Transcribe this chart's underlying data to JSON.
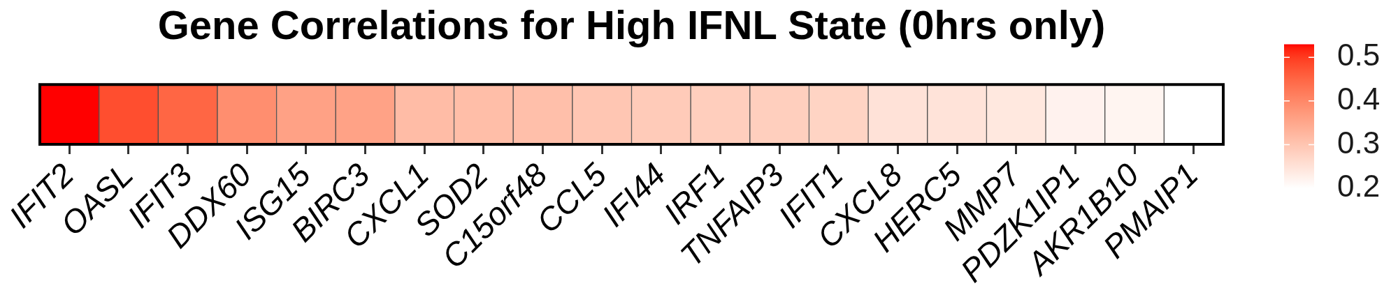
{
  "chart_data": {
    "type": "heatmap",
    "title": "Gene Correlations for High IFNL State (0hrs only)",
    "categories": [
      "IFIT2",
      "OASL",
      "IFIT3",
      "DDX60",
      "ISG15",
      "BIRC3",
      "CXCL1",
      "SOD2",
      "C15orf48",
      "CCL5",
      "IFI44",
      "IRF1",
      "TNFAIP3",
      "IFIT1",
      "CXCL8",
      "HERC5",
      "MMP7",
      "PDZK1IP1",
      "AKR1B10",
      "PMAIP1"
    ],
    "y_categories": [
      null
    ],
    "cells": [
      [
        0.53,
        0.48,
        0.45,
        0.39,
        0.36,
        0.358,
        0.315,
        0.312,
        0.31,
        0.298,
        0.29,
        0.285,
        0.283,
        0.275,
        0.25,
        0.248,
        0.24,
        0.222,
        0.218,
        0.2
      ]
    ],
    "clim": [
      0.2,
      0.53
    ],
    "cticks": [
      0.2,
      0.3,
      0.4,
      0.5
    ]
  }
}
